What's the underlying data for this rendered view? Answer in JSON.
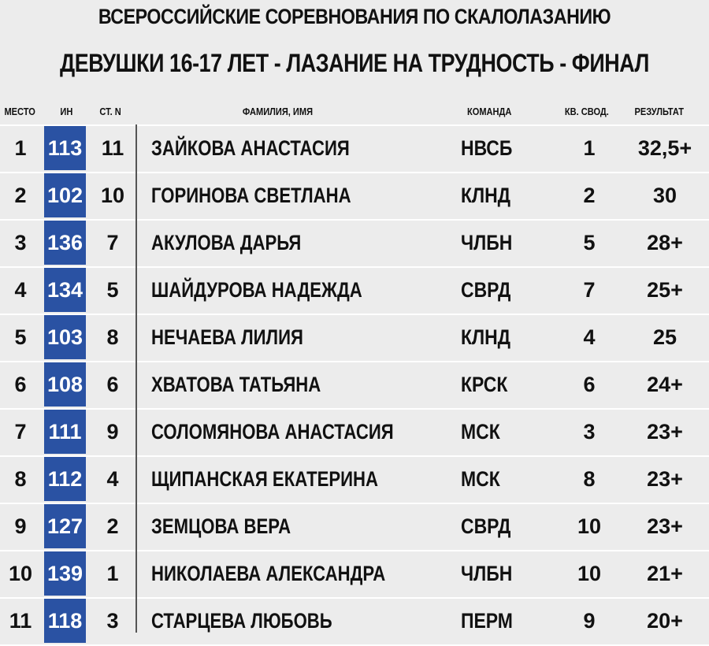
{
  "header": {
    "title": "ВСЕРОССИЙСКИЕ СОРЕВНОВАНИЯ ПО СКАЛОЛАЗАНИЮ",
    "subtitle": "ДЕВУШКИ 16-17 ЛЕТ - ЛАЗАНИЕ НА ТРУДНОСТЬ - ФИНАЛ"
  },
  "columns": {
    "place": "МЕСТО",
    "bib": "ИН",
    "start": "СТ. N",
    "name": "ФАМИЛИЯ, ИМЯ",
    "team": "КОМАНДА",
    "qual": "КВ. СВОД.",
    "result": "РЕЗУЛЬТАТ"
  },
  "colors": {
    "bib_background": "#2a52a3",
    "page_background": "#ececec"
  },
  "rows": [
    {
      "place": "1",
      "bib": "113",
      "start": "11",
      "name": "ЗАЙКОВА АНАСТАСИЯ",
      "team": "НВСБ",
      "qual": "1",
      "result": "32,5+"
    },
    {
      "place": "2",
      "bib": "102",
      "start": "10",
      "name": "ГОРИНОВА СВЕТЛАНА",
      "team": "КЛНД",
      "qual": "2",
      "result": "30"
    },
    {
      "place": "3",
      "bib": "136",
      "start": "7",
      "name": "АКУЛОВА ДАРЬЯ",
      "team": "ЧЛБН",
      "qual": "5",
      "result": "28+"
    },
    {
      "place": "4",
      "bib": "134",
      "start": "5",
      "name": "ШАЙДУРОВА НАДЕЖДА",
      "team": "СВРД",
      "qual": "7",
      "result": "25+"
    },
    {
      "place": "5",
      "bib": "103",
      "start": "8",
      "name": "НЕЧАЕВА ЛИЛИЯ",
      "team": "КЛНД",
      "qual": "4",
      "result": "25"
    },
    {
      "place": "6",
      "bib": "108",
      "start": "6",
      "name": "ХВАТОВА ТАТЬЯНА",
      "team": "КРСК",
      "qual": "6",
      "result": "24+"
    },
    {
      "place": "7",
      "bib": "111",
      "start": "9",
      "name": "СОЛОМЯНОВА АНАСТАСИЯ",
      "team": "МСК",
      "qual": "3",
      "result": "23+"
    },
    {
      "place": "8",
      "bib": "112",
      "start": "4",
      "name": "ЩИПАНСКАЯ ЕКАТЕРИНА",
      "team": "МСК",
      "qual": "8",
      "result": "23+"
    },
    {
      "place": "9",
      "bib": "127",
      "start": "2",
      "name": "ЗЕМЦОВА ВЕРА",
      "team": "СВРД",
      "qual": "10",
      "result": "23+"
    },
    {
      "place": "10",
      "bib": "139",
      "start": "1",
      "name": "НИКОЛАЕВА АЛЕКСАНДРА",
      "team": "ЧЛБН",
      "qual": "10",
      "result": "21+"
    },
    {
      "place": "11",
      "bib": "118",
      "start": "3",
      "name": "СТАРЦЕВА ЛЮБОВЬ",
      "team": "ПЕРМ",
      "qual": "9",
      "result": "20+"
    }
  ]
}
